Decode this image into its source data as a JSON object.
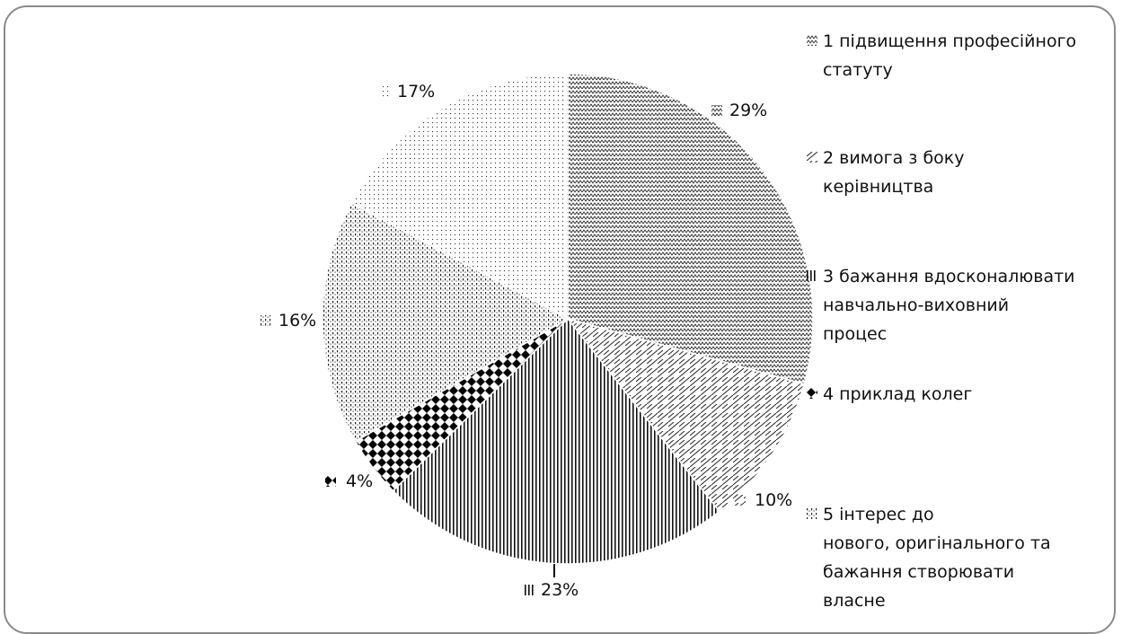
{
  "chart_data": {
    "type": "pie",
    "title": "",
    "slices": [
      {
        "label": "1 підвищення професійного статуту",
        "value": 29,
        "value_label": "29%",
        "pattern": "zigzag"
      },
      {
        "label": "2  вимога з боку керівництва",
        "value": 10,
        "value_label": "10%",
        "pattern": "brick"
      },
      {
        "label": "3 бажання вдосконалювати навчально-виховний процес",
        "value": 23,
        "value_label": "23%",
        "pattern": "vertical-lines"
      },
      {
        "label": "4 приклад колег",
        "value": 4,
        "value_label": "4%",
        "pattern": "checker"
      },
      {
        "label": "5 інтерес до нового, оригінального та бажання створювати власне",
        "value": 16,
        "value_label": "16%",
        "pattern": "dashed-grid"
      },
      {
        "label": "",
        "value": 17,
        "value_label": "17%",
        "pattern": "dots"
      }
    ],
    "legend_position": "right"
  },
  "legend": {
    "items": [
      {
        "lines": [
          "1 підвищення професійного",
          "статуту"
        ]
      },
      {
        "lines": [
          "2  вимога з боку",
          "керівництва"
        ]
      },
      {
        "lines": [
          "3 бажання вдосконалювати",
          "навчально-виховний",
          "процес"
        ]
      },
      {
        "lines": [
          "4 приклад колег"
        ]
      },
      {
        "lines": [
          "5 інтерес до",
          "нового, оригінального та",
          "бажання створювати",
          "власне"
        ]
      }
    ]
  }
}
